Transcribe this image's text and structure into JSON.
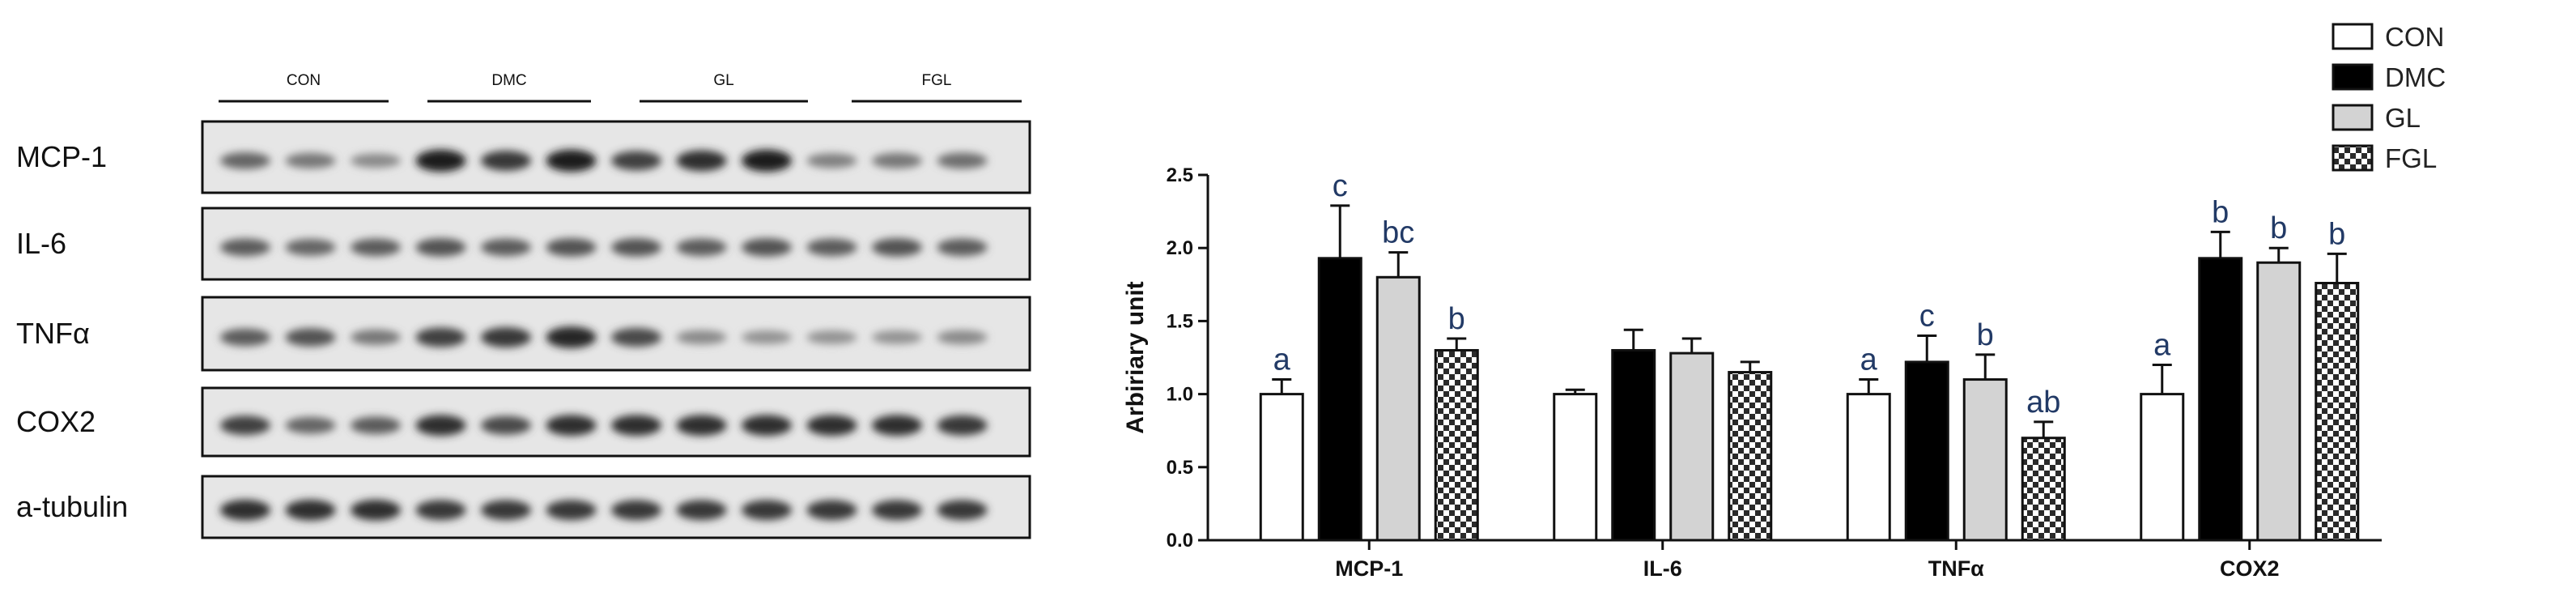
{
  "blot": {
    "groups": [
      "CON",
      "DMC",
      "GL",
      "FGL"
    ],
    "rows": [
      {
        "label": "MCP-1",
        "intensity": [
          0.55,
          0.45,
          0.35,
          0.95,
          0.8,
          0.95,
          0.75,
          0.85,
          0.95,
          0.4,
          0.45,
          0.5
        ]
      },
      {
        "label": "IL-6",
        "intensity": [
          0.6,
          0.55,
          0.6,
          0.65,
          0.6,
          0.65,
          0.65,
          0.6,
          0.65,
          0.6,
          0.65,
          0.6
        ]
      },
      {
        "label": "TNFα",
        "intensity": [
          0.6,
          0.65,
          0.45,
          0.75,
          0.8,
          0.9,
          0.7,
          0.35,
          0.3,
          0.3,
          0.3,
          0.35
        ]
      },
      {
        "label": "COX2",
        "intensity": [
          0.75,
          0.55,
          0.6,
          0.85,
          0.7,
          0.85,
          0.85,
          0.85,
          0.85,
          0.85,
          0.85,
          0.8
        ]
      },
      {
        "label": "a-tubulin",
        "intensity": [
          0.85,
          0.85,
          0.85,
          0.8,
          0.8,
          0.8,
          0.8,
          0.8,
          0.8,
          0.8,
          0.8,
          0.8
        ]
      }
    ]
  },
  "chart_data": {
    "type": "bar",
    "categories": [
      "MCP-1",
      "IL-6",
      "TNFα",
      "COX2"
    ],
    "ylabel": "Arbiriary unit",
    "xlabel": "",
    "ylim": [
      0,
      2.5
    ],
    "yticks": [
      "0.0",
      "0.5",
      "1.0",
      "1.5",
      "2.0",
      "2.5"
    ],
    "legend_position": "top-right",
    "series": [
      {
        "name": "CON",
        "fill": "#ffffff",
        "pattern": "none",
        "values": [
          1.0,
          1.0,
          1.0,
          1.0
        ],
        "errors": [
          0.1,
          0.03,
          0.1,
          0.2
        ],
        "sig": [
          "a",
          "",
          "a",
          "a"
        ]
      },
      {
        "name": "DMC",
        "fill": "#000000",
        "pattern": "none",
        "values": [
          1.93,
          1.3,
          1.22,
          1.93
        ],
        "errors": [
          0.36,
          0.14,
          0.18,
          0.18
        ],
        "sig": [
          "c",
          "",
          "c",
          "b"
        ]
      },
      {
        "name": "GL",
        "fill": "#d3d3d3",
        "pattern": "none",
        "values": [
          1.8,
          1.28,
          1.1,
          1.9
        ],
        "errors": [
          0.17,
          0.1,
          0.17,
          0.1
        ],
        "sig": [
          "bc",
          "",
          "b",
          "b"
        ]
      },
      {
        "name": "FGL",
        "fill": "#ffffff",
        "pattern": "checker",
        "values": [
          1.3,
          1.15,
          0.7,
          1.76
        ],
        "errors": [
          0.08,
          0.07,
          0.11,
          0.2
        ],
        "sig": [
          "b",
          "",
          "ab",
          "b"
        ]
      }
    ]
  }
}
